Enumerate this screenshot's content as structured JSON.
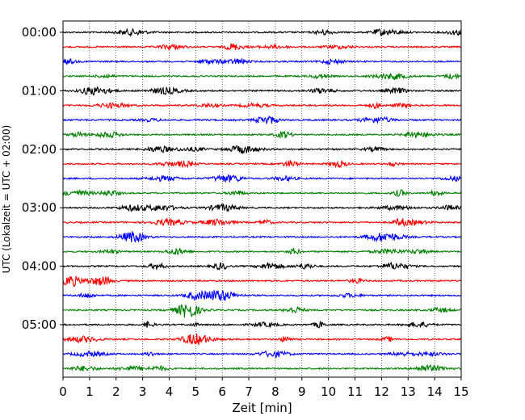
{
  "chart_data": {
    "type": "line",
    "title": "",
    "xlabel": "Zeit  [min]",
    "ylabel": "UTC (Lokalzeit = UTC + 02:00)",
    "xlim": [
      0,
      15
    ],
    "x_ticks": [
      "0",
      "1",
      "2",
      "3",
      "4",
      "5",
      "6",
      "7",
      "8",
      "9",
      "10",
      "11",
      "12",
      "13",
      "14",
      "15"
    ],
    "y_tick_labels": [
      "00:00",
      "01:00",
      "02:00",
      "03:00",
      "04:00",
      "05:00"
    ],
    "grid": "vertical dotted lines at each minute",
    "trace_interval_minutes": 15,
    "trace_colors": [
      "#000000",
      "#ff0000",
      "#0000ff",
      "#008000"
    ],
    "series": [
      {
        "start": "00:00",
        "color": "#000000"
      },
      {
        "start": "00:15",
        "color": "#ff0000"
      },
      {
        "start": "00:30",
        "color": "#0000ff"
      },
      {
        "start": "00:45",
        "color": "#008000"
      },
      {
        "start": "01:00",
        "color": "#000000"
      },
      {
        "start": "01:15",
        "color": "#ff0000"
      },
      {
        "start": "01:30",
        "color": "#0000ff"
      },
      {
        "start": "01:45",
        "color": "#008000"
      },
      {
        "start": "02:00",
        "color": "#000000"
      },
      {
        "start": "02:15",
        "color": "#ff0000"
      },
      {
        "start": "02:30",
        "color": "#0000ff"
      },
      {
        "start": "02:45",
        "color": "#008000"
      },
      {
        "start": "03:00",
        "color": "#000000"
      },
      {
        "start": "03:15",
        "color": "#ff0000"
      },
      {
        "start": "03:30",
        "color": "#0000ff"
      },
      {
        "start": "03:45",
        "color": "#008000"
      },
      {
        "start": "04:00",
        "color": "#000000"
      },
      {
        "start": "04:15",
        "color": "#ff0000"
      },
      {
        "start": "04:30",
        "color": "#0000ff"
      },
      {
        "start": "04:45",
        "color": "#008000"
      },
      {
        "start": "05:00",
        "color": "#000000"
      },
      {
        "start": "05:15",
        "color": "#ff0000"
      },
      {
        "start": "05:30",
        "color": "#0000ff"
      },
      {
        "start": "05:45",
        "color": "#008000"
      }
    ]
  }
}
